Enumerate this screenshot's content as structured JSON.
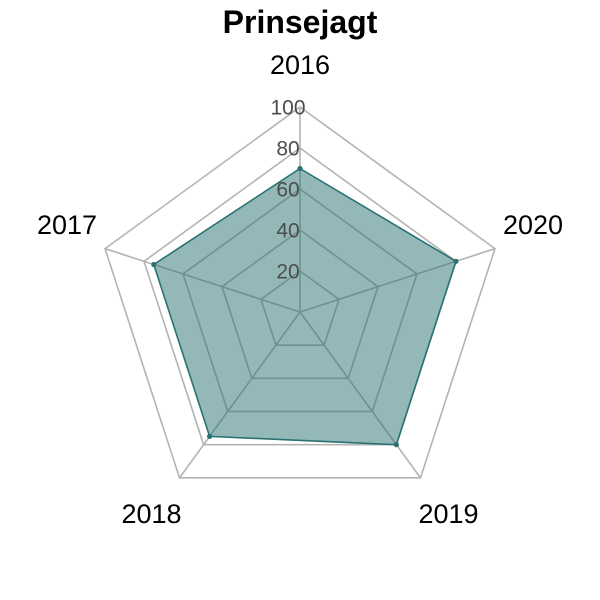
{
  "chart_data": {
    "type": "radar",
    "title": "Prinsejagt",
    "categories": [
      "2016",
      "2020",
      "2019",
      "2018",
      "2017"
    ],
    "series": [
      {
        "values": [
          70,
          80,
          80,
          75,
          75
        ],
        "color": "#2a7272",
        "fill_color": "#2a7272",
        "fill_opacity": 0.5
      }
    ],
    "rlim": [
      0,
      100
    ],
    "radial_ticks": [
      20,
      40,
      60,
      80,
      100
    ],
    "radial_tick_labels": [
      "20",
      "40",
      "60",
      "80",
      "100"
    ],
    "grid": true,
    "grid_color": "#b3b3b3"
  }
}
